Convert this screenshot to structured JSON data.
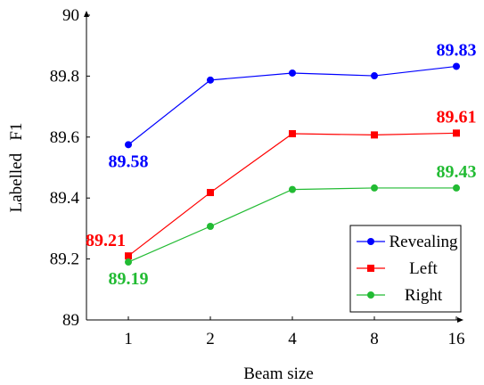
{
  "chart_data": {
    "type": "line",
    "title": "",
    "xlabel": "Beam size",
    "ylabel": "Labelled   F1",
    "x": [
      1,
      2,
      4,
      8,
      16
    ],
    "x_tick_labels": [
      "1",
      "2",
      "4",
      "8",
      "16"
    ],
    "y_tick_values": [
      89,
      89.2,
      89.4,
      89.6,
      89.8,
      90
    ],
    "y_tick_labels": [
      "89",
      "89.2",
      "89.4",
      "89.6",
      "89.8",
      "90"
    ],
    "ylim": [
      89,
      90
    ],
    "grid": false,
    "legend_position": "bottom-right",
    "series": [
      {
        "name": "Revealing",
        "color": "#0000ff",
        "marker": "circle",
        "values": [
          89.575,
          89.787,
          89.81,
          89.801,
          89.832
        ],
        "annotations": [
          {
            "index": 0,
            "text": "89.58",
            "placement": "below"
          },
          {
            "index": 4,
            "text": "89.83",
            "placement": "above"
          }
        ]
      },
      {
        "name": "Left",
        "color": "#ff0000",
        "marker": "square",
        "values": [
          89.21,
          89.418,
          89.611,
          89.607,
          89.613
        ],
        "annotations": [
          {
            "index": 0,
            "text": "89.21",
            "placement": "left"
          },
          {
            "index": 4,
            "text": "89.61",
            "placement": "above"
          }
        ]
      },
      {
        "name": "Right",
        "color": "#22bb33",
        "marker": "circle",
        "values": [
          89.19,
          89.307,
          89.428,
          89.433,
          89.433
        ],
        "annotations": [
          {
            "index": 0,
            "text": "89.19",
            "placement": "below"
          },
          {
            "index": 4,
            "text": "89.43",
            "placement": "above"
          }
        ]
      }
    ]
  }
}
